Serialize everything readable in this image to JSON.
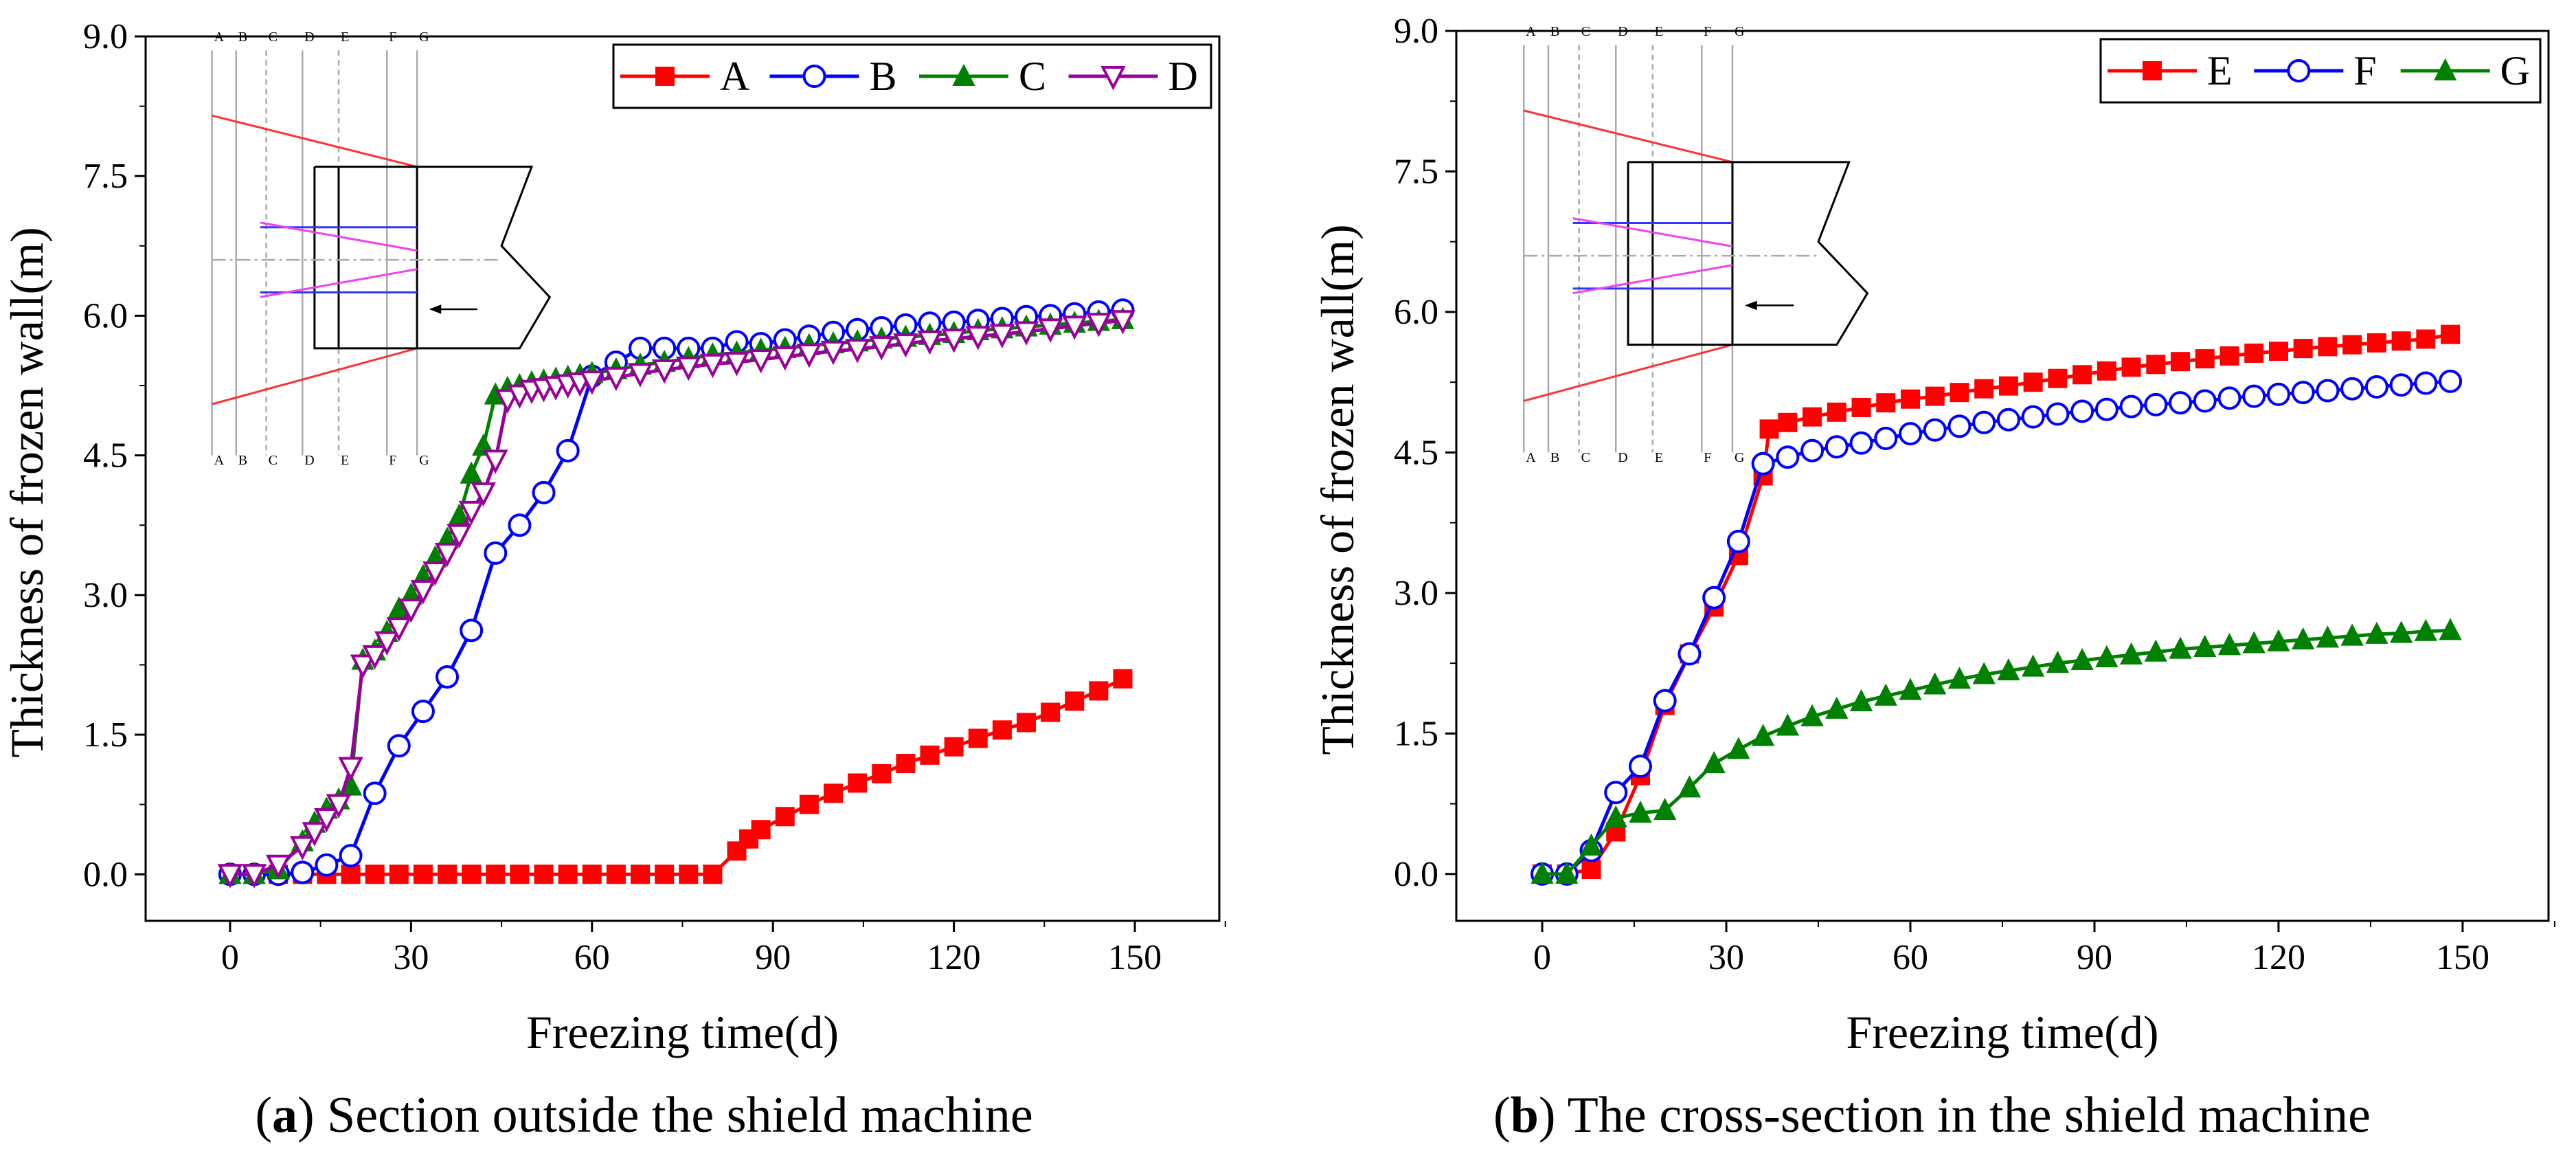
{
  "chart_data": [
    {
      "panel": "a",
      "type": "line",
      "xlabel": "Freezing time(d)",
      "ylabel": "Thickness of frozen wall(m)",
      "xlim": [
        -14,
        164
      ],
      "ylim": [
        -0.5,
        9.0
      ],
      "xticks": [
        "0",
        "30",
        "60",
        "90",
        "120",
        "150"
      ],
      "yticks": [
        "0.0",
        "1.5",
        "3.0",
        "4.5",
        "6.0",
        "7.5",
        "9.0"
      ],
      "legend_position": "top-right",
      "grid": false,
      "caption_letter": "a",
      "caption_text": " Section outside the shield machine",
      "inset_letters": [
        "A",
        "B",
        "C",
        "D",
        "E",
        "F",
        "G"
      ],
      "series": [
        {
          "name": "A",
          "color": "#ff0000",
          "marker": "square",
          "x": [
            0,
            4,
            8,
            12,
            16,
            20,
            24,
            28,
            32,
            36,
            40,
            44,
            48,
            52,
            56,
            60,
            64,
            68,
            72,
            76,
            80,
            84,
            86,
            88,
            92,
            96,
            100,
            104,
            108,
            112,
            116,
            120,
            124,
            128,
            132,
            136,
            140,
            144,
            148
          ],
          "y": [
            0,
            0,
            0,
            0,
            0,
            0,
            0,
            0,
            0,
            0,
            0,
            0,
            0,
            0,
            0,
            0,
            0,
            0,
            0,
            0,
            0,
            0.25,
            0.38,
            0.48,
            0.62,
            0.75,
            0.87,
            0.98,
            1.08,
            1.19,
            1.28,
            1.37,
            1.46,
            1.55,
            1.63,
            1.74,
            1.86,
            1.97,
            2.1
          ]
        },
        {
          "name": "B",
          "color": "#0000ff",
          "marker": "circle-open",
          "x": [
            0,
            4,
            8,
            12,
            16,
            20,
            24,
            28,
            32,
            36,
            40,
            44,
            48,
            52,
            56,
            60,
            64,
            68,
            72,
            76,
            80,
            84,
            88,
            92,
            96,
            100,
            104,
            108,
            112,
            116,
            120,
            124,
            128,
            132,
            136,
            140,
            144,
            148
          ],
          "y": [
            0,
            0,
            0,
            0.02,
            0.1,
            0.2,
            0.87,
            1.38,
            1.75,
            2.12,
            2.62,
            3.45,
            3.75,
            4.1,
            4.55,
            5.35,
            5.5,
            5.65,
            5.65,
            5.65,
            5.65,
            5.72,
            5.7,
            5.74,
            5.78,
            5.82,
            5.85,
            5.87,
            5.9,
            5.92,
            5.93,
            5.95,
            5.97,
            5.99,
            6.0,
            6.02,
            6.04,
            6.06
          ]
        },
        {
          "name": "C",
          "color": "#008000",
          "marker": "triangle-up-filled",
          "x": [
            0,
            4,
            8,
            12,
            14,
            16,
            18,
            20,
            22,
            24,
            26,
            28,
            30,
            32,
            34,
            36,
            38,
            40,
            42,
            44,
            46,
            48,
            50,
            52,
            54,
            56,
            58,
            60,
            64,
            68,
            72,
            76,
            80,
            84,
            88,
            92,
            96,
            100,
            104,
            108,
            112,
            116,
            120,
            124,
            128,
            132,
            136,
            140,
            144,
            148
          ],
          "y": [
            0,
            0,
            0.05,
            0.35,
            0.55,
            0.7,
            0.8,
            0.95,
            2.3,
            2.4,
            2.6,
            2.85,
            3.0,
            3.2,
            3.4,
            3.6,
            3.85,
            4.3,
            4.6,
            5.15,
            5.22,
            5.25,
            5.28,
            5.3,
            5.32,
            5.34,
            5.36,
            5.38,
            5.42,
            5.47,
            5.5,
            5.54,
            5.58,
            5.6,
            5.63,
            5.65,
            5.68,
            5.7,
            5.72,
            5.75,
            5.77,
            5.79,
            5.81,
            5.84,
            5.86,
            5.88,
            5.9,
            5.92,
            5.94,
            5.96
          ]
        },
        {
          "name": "D",
          "color": "#990099",
          "marker": "triangle-down-open",
          "x": [
            0,
            4,
            8,
            12,
            14,
            16,
            18,
            20,
            22,
            24,
            26,
            28,
            30,
            32,
            34,
            36,
            38,
            40,
            42,
            44,
            46,
            48,
            50,
            52,
            54,
            56,
            58,
            60,
            64,
            68,
            72,
            76,
            80,
            84,
            88,
            92,
            96,
            100,
            104,
            108,
            112,
            116,
            120,
            124,
            128,
            132,
            136,
            140,
            144,
            148
          ],
          "y": [
            0,
            0,
            0.1,
            0.3,
            0.45,
            0.6,
            0.75,
            1.15,
            2.25,
            2.35,
            2.5,
            2.65,
            2.85,
            3.05,
            3.25,
            3.45,
            3.65,
            3.9,
            4.1,
            4.45,
            5.1,
            5.15,
            5.2,
            5.22,
            5.24,
            5.26,
            5.28,
            5.3,
            5.34,
            5.38,
            5.42,
            5.45,
            5.48,
            5.5,
            5.53,
            5.56,
            5.59,
            5.62,
            5.64,
            5.67,
            5.7,
            5.73,
            5.75,
            5.78,
            5.8,
            5.83,
            5.86,
            5.89,
            5.92,
            5.95
          ]
        }
      ]
    },
    {
      "panel": "b",
      "type": "line",
      "xlabel": "Freezing time(d)",
      "ylabel": "Thickness of frozen wall(m)",
      "xlim": [
        -14,
        164
      ],
      "ylim": [
        -0.5,
        9.0
      ],
      "xticks": [
        "0",
        "30",
        "60",
        "90",
        "120",
        "150"
      ],
      "yticks": [
        "0.0",
        "1.5",
        "3.0",
        "4.5",
        "6.0",
        "7.5",
        "9.0"
      ],
      "legend_position": "top-right",
      "grid": false,
      "caption_letter": "b",
      "caption_text": " The cross-section in the shield machine",
      "inset_letters": [
        "A",
        "B",
        "C",
        "D",
        "E",
        "F",
        "G"
      ],
      "series": [
        {
          "name": "E",
          "color": "#ff0000",
          "marker": "square",
          "x": [
            0,
            4,
            8,
            12,
            16,
            20,
            24,
            28,
            32,
            36,
            37,
            40,
            44,
            48,
            52,
            56,
            60,
            64,
            68,
            72,
            76,
            80,
            84,
            88,
            92,
            96,
            100,
            104,
            108,
            112,
            116,
            120,
            124,
            128,
            132,
            136,
            140,
            144,
            148
          ],
          "y": [
            0,
            0,
            0.05,
            0.45,
            1.05,
            1.8,
            2.35,
            2.85,
            3.4,
            4.25,
            4.75,
            4.82,
            4.88,
            4.93,
            4.98,
            5.03,
            5.07,
            5.1,
            5.14,
            5.18,
            5.21,
            5.25,
            5.29,
            5.33,
            5.37,
            5.41,
            5.44,
            5.47,
            5.5,
            5.53,
            5.56,
            5.58,
            5.61,
            5.63,
            5.65,
            5.67,
            5.69,
            5.71,
            5.76
          ]
        },
        {
          "name": "F",
          "color": "#0000ff",
          "marker": "circle-open",
          "x": [
            0,
            4,
            8,
            12,
            16,
            20,
            24,
            28,
            32,
            36,
            40,
            44,
            48,
            52,
            56,
            60,
            64,
            68,
            72,
            76,
            80,
            84,
            88,
            92,
            96,
            100,
            104,
            108,
            112,
            116,
            120,
            124,
            128,
            132,
            136,
            140,
            144,
            148
          ],
          "y": [
            0,
            0,
            0.25,
            0.87,
            1.15,
            1.85,
            2.35,
            2.95,
            3.55,
            4.38,
            4.45,
            4.52,
            4.56,
            4.6,
            4.65,
            4.7,
            4.74,
            4.78,
            4.82,
            4.85,
            4.88,
            4.91,
            4.94,
            4.96,
            4.99,
            5.01,
            5.03,
            5.05,
            5.08,
            5.1,
            5.12,
            5.14,
            5.16,
            5.18,
            5.2,
            5.22,
            5.24,
            5.26
          ]
        },
        {
          "name": "G",
          "color": "#008000",
          "marker": "triangle-up-filled",
          "x": [
            0,
            4,
            8,
            12,
            16,
            20,
            24,
            28,
            32,
            36,
            40,
            44,
            48,
            52,
            56,
            60,
            64,
            68,
            72,
            76,
            80,
            84,
            88,
            92,
            96,
            100,
            104,
            108,
            112,
            116,
            120,
            124,
            128,
            132,
            136,
            140,
            144,
            148
          ],
          "y": [
            0,
            0,
            0.3,
            0.6,
            0.65,
            0.68,
            0.92,
            1.18,
            1.33,
            1.47,
            1.58,
            1.68,
            1.76,
            1.84,
            1.9,
            1.96,
            2.02,
            2.08,
            2.13,
            2.17,
            2.21,
            2.25,
            2.28,
            2.31,
            2.34,
            2.37,
            2.4,
            2.42,
            2.44,
            2.46,
            2.48,
            2.5,
            2.52,
            2.54,
            2.56,
            2.57,
            2.59,
            2.6
          ]
        }
      ]
    }
  ]
}
